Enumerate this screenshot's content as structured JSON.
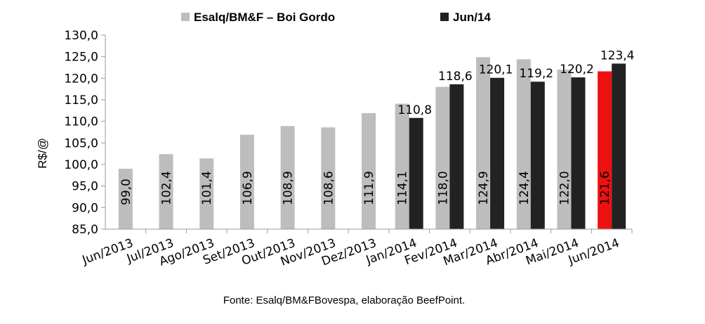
{
  "chart_data": {
    "type": "bar",
    "title": "",
    "ylabel": "R$/@",
    "xlabel": "",
    "ylim": [
      85,
      130
    ],
    "yticks": [
      "85,0",
      "90,0",
      "95,0",
      "100,0",
      "105,0",
      "110,0",
      "115,0",
      "120,0",
      "125,0",
      "130,0"
    ],
    "categories": [
      "Jun/2013",
      "Jul/2013",
      "Ago/2013",
      "Set/2013",
      "Out/2013",
      "Nov/2013",
      "Dez/2013",
      "Jan/2014",
      "Fev/2014",
      "Mar/2014",
      "Abr/2014",
      "Mai/2014",
      "Jun/2014"
    ],
    "series": [
      {
        "name": "Esalq/BM&F – Boi Gordo",
        "color": "#bdbdbd",
        "highlight_color": "#ee1111",
        "highlight_index": 12,
        "values": [
          99.0,
          102.4,
          101.4,
          106.9,
          108.9,
          108.6,
          111.9,
          114.1,
          118.0,
          124.9,
          124.4,
          122.0,
          121.6
        ],
        "labels": [
          "99,0",
          "102,4",
          "101,4",
          "106,9",
          "108,9",
          "108,6",
          "111,9",
          "114,1",
          "118,0",
          "124,9",
          "124,4",
          "122,0",
          "121,6"
        ]
      },
      {
        "name": "Jun/14",
        "color": "#222222",
        "values": [
          null,
          null,
          null,
          null,
          null,
          null,
          null,
          110.8,
          118.6,
          120.1,
          119.2,
          120.2,
          123.4
        ],
        "labels": [
          "",
          "",
          "",
          "",
          "",
          "",
          "",
          "110,8",
          "118,6",
          "120,1",
          "119,2",
          "120,2",
          "123,4"
        ]
      }
    ],
    "legend_position": "top",
    "grid": false
  },
  "source_note": "Fonte: Esalq/BM&FBovespa, elaboração BeefPoint."
}
